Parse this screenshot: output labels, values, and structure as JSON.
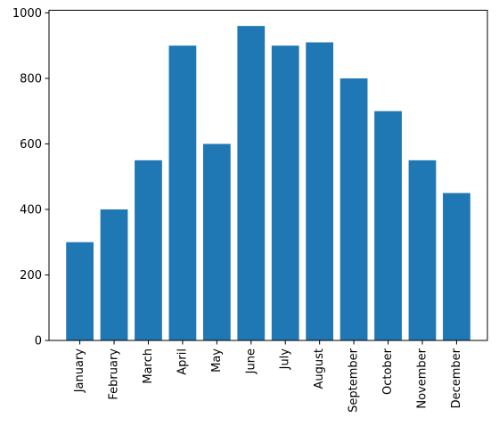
{
  "chart_data": {
    "type": "bar",
    "title": "",
    "xlabel": "",
    "ylabel": "",
    "categories": [
      "January",
      "February",
      "March",
      "April",
      "May",
      "June",
      "July",
      "August",
      "September",
      "October",
      "November",
      "December"
    ],
    "values": [
      300,
      400,
      550,
      900,
      600,
      960,
      900,
      910,
      800,
      700,
      550,
      450
    ],
    "ylim": [
      0,
      1008
    ],
    "yticks": [
      0,
      200,
      400,
      600,
      800,
      1000
    ],
    "bar_color": "#1f77b4",
    "grid": false,
    "legend": "none"
  }
}
